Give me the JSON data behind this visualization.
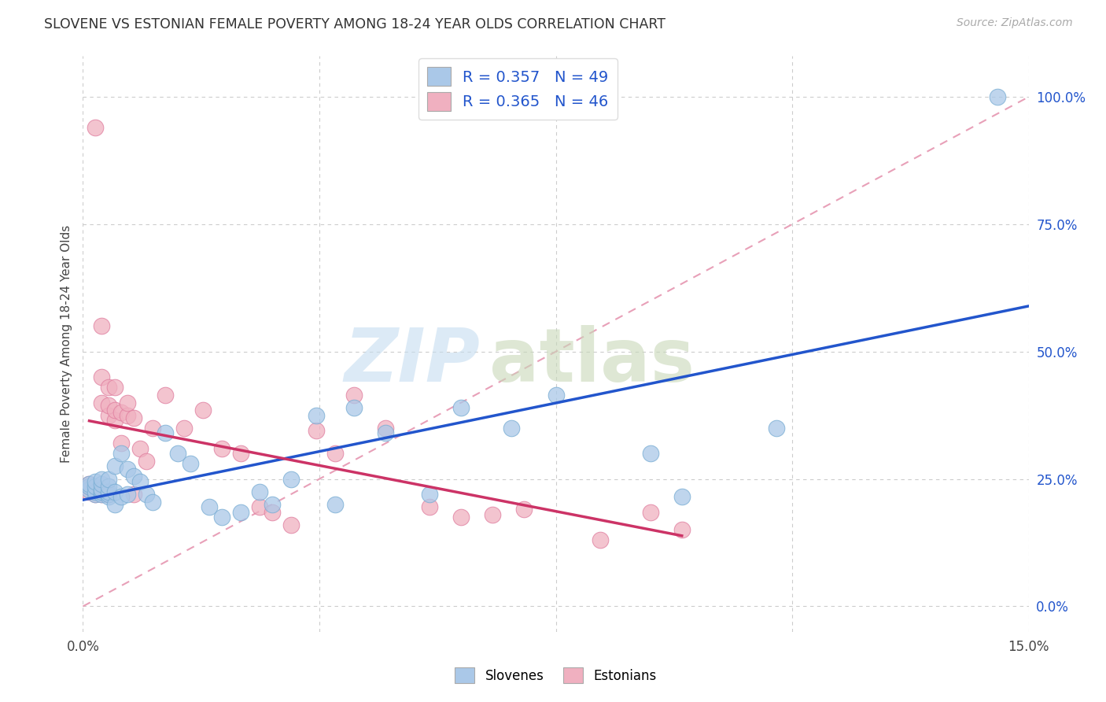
{
  "title": "SLOVENE VS ESTONIAN FEMALE POVERTY AMONG 18-24 YEAR OLDS CORRELATION CHART",
  "source": "Source: ZipAtlas.com",
  "ylabel": "Female Poverty Among 18-24 Year Olds",
  "xlim": [
    0.0,
    0.15
  ],
  "ylim": [
    -0.05,
    1.08
  ],
  "xticks": [
    0.0,
    0.0375,
    0.075,
    0.1125,
    0.15
  ],
  "xticklabels": [
    "0.0%",
    "",
    "",
    "",
    "15.0%"
  ],
  "yticks_right": [
    0.0,
    0.25,
    0.5,
    0.75,
    1.0
  ],
  "yticklabels_right": [
    "0.0%",
    "25.0%",
    "50.0%",
    "75.0%",
    "100.0%"
  ],
  "grid_color": "#cccccc",
  "background_color": "#ffffff",
  "slovene_color": "#aac8e8",
  "estonian_color": "#f0b0c0",
  "slovene_edge_color": "#7aaed4",
  "estonian_edge_color": "#e080a0",
  "slovene_line_color": "#2255cc",
  "estonian_line_color": "#cc3366",
  "ref_line_color": "#e8a0b8",
  "legend_R_slovene": "R = 0.357",
  "legend_N_slovene": "N = 49",
  "legend_R_estonian": "R = 0.365",
  "legend_N_estonian": "N = 46",
  "legend_text_color": "#2255cc",
  "slovene_x": [
    0.001,
    0.001,
    0.001,
    0.002,
    0.002,
    0.002,
    0.002,
    0.003,
    0.003,
    0.003,
    0.003,
    0.003,
    0.004,
    0.004,
    0.004,
    0.004,
    0.004,
    0.005,
    0.005,
    0.005,
    0.006,
    0.006,
    0.007,
    0.007,
    0.008,
    0.009,
    0.01,
    0.011,
    0.013,
    0.015,
    0.017,
    0.02,
    0.022,
    0.025,
    0.028,
    0.03,
    0.033,
    0.037,
    0.04,
    0.043,
    0.048,
    0.055,
    0.06,
    0.068,
    0.075,
    0.09,
    0.095,
    0.11,
    0.145
  ],
  "slovene_y": [
    0.23,
    0.235,
    0.24,
    0.22,
    0.225,
    0.235,
    0.245,
    0.22,
    0.225,
    0.23,
    0.24,
    0.25,
    0.215,
    0.22,
    0.225,
    0.235,
    0.25,
    0.2,
    0.225,
    0.275,
    0.215,
    0.3,
    0.22,
    0.27,
    0.255,
    0.245,
    0.22,
    0.205,
    0.34,
    0.3,
    0.28,
    0.195,
    0.175,
    0.185,
    0.225,
    0.2,
    0.25,
    0.375,
    0.2,
    0.39,
    0.34,
    0.22,
    0.39,
    0.35,
    0.415,
    0.3,
    0.215,
    0.35,
    1.0
  ],
  "estonian_x": [
    0.001,
    0.001,
    0.001,
    0.002,
    0.002,
    0.002,
    0.003,
    0.003,
    0.003,
    0.003,
    0.003,
    0.004,
    0.004,
    0.004,
    0.004,
    0.005,
    0.005,
    0.005,
    0.006,
    0.006,
    0.007,
    0.007,
    0.008,
    0.008,
    0.009,
    0.01,
    0.011,
    0.013,
    0.016,
    0.019,
    0.022,
    0.025,
    0.028,
    0.03,
    0.033,
    0.037,
    0.04,
    0.043,
    0.048,
    0.055,
    0.06,
    0.065,
    0.07,
    0.082,
    0.09,
    0.095
  ],
  "estonian_y": [
    0.225,
    0.235,
    0.24,
    0.22,
    0.235,
    0.94,
    0.22,
    0.225,
    0.4,
    0.45,
    0.55,
    0.22,
    0.375,
    0.395,
    0.43,
    0.365,
    0.385,
    0.43,
    0.32,
    0.38,
    0.375,
    0.4,
    0.22,
    0.37,
    0.31,
    0.285,
    0.35,
    0.415,
    0.35,
    0.385,
    0.31,
    0.3,
    0.195,
    0.185,
    0.16,
    0.345,
    0.3,
    0.415,
    0.35,
    0.195,
    0.175,
    0.18,
    0.19,
    0.13,
    0.185,
    0.15
  ]
}
